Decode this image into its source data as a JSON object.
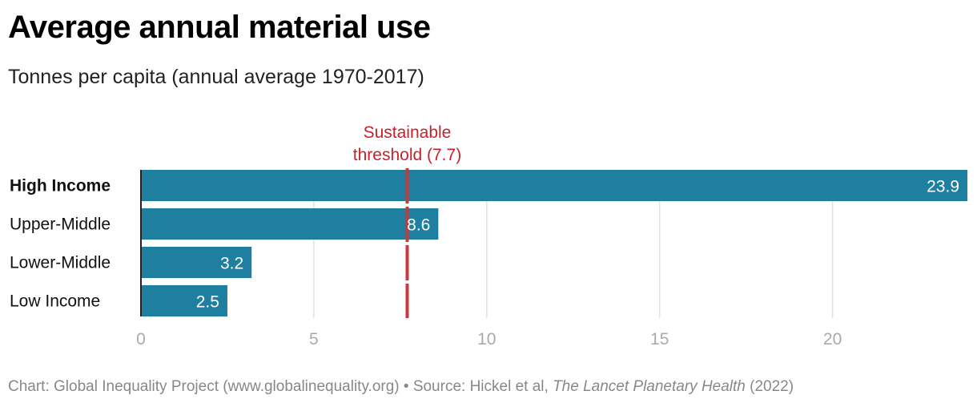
{
  "chart_data": {
    "type": "bar",
    "orientation": "horizontal",
    "title": "Average annual material use",
    "subtitle": "Tonnes per capita (annual average 1970-2017)",
    "categories": [
      "High Income",
      "Upper-Middle",
      "Lower-Middle",
      "Low Income"
    ],
    "values": [
      23.9,
      8.6,
      3.2,
      2.5
    ],
    "value_labels": [
      "23.9",
      "8.6",
      "3.2",
      "2.5"
    ],
    "xlim": [
      0,
      23.9
    ],
    "xticks": [
      0,
      5,
      10,
      15,
      20
    ],
    "xtick_labels": [
      "0",
      "5",
      "10",
      "15",
      "20"
    ],
    "grid": true,
    "reference_line": {
      "value": 7.7,
      "label_line1": "Sustainable",
      "label_line2": "threshold (7.7)",
      "color": "#c8393c"
    },
    "bar_color": "#1f7fa0",
    "label_color": "#c8212a",
    "highlighted_category": "High Income"
  },
  "footer": {
    "prefix": "Chart: Global Inequality Project (www.globalinequality.org) • Source: Hickel et al, ",
    "journal": "The Lancet Planetary Health",
    "suffix": " (2022)"
  }
}
